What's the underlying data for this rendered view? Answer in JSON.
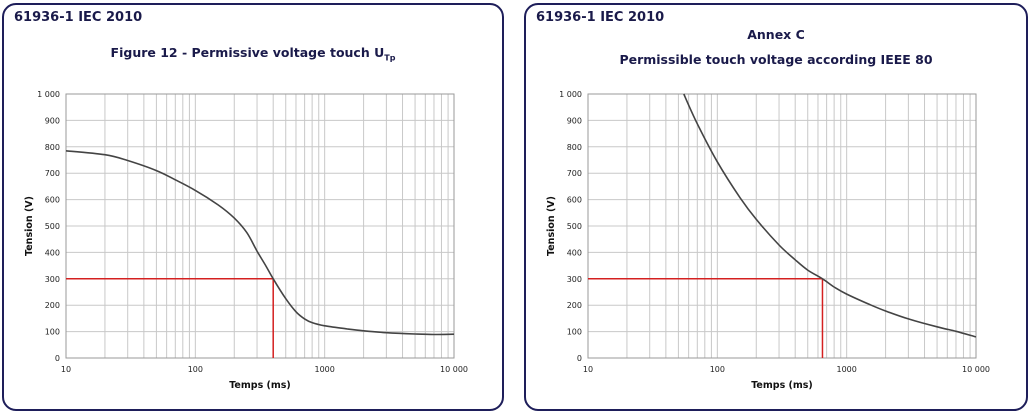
{
  "chart_data": [
    {
      "type": "line",
      "standard": "61936-1 IEC 2010",
      "annex": "",
      "title": "Figure 12 - Permissive voltage touch U",
      "title_subscript": "Tp",
      "xlabel": "Temps (ms)",
      "ylabel": "Tension (V)",
      "xscale": "log",
      "xlim": [
        10,
        10000
      ],
      "ylim": [
        0,
        1000
      ],
      "xticks": [
        {
          "value": 10,
          "label": "10"
        },
        {
          "value": 100,
          "label": "100"
        },
        {
          "value": 1000,
          "label": "1000"
        },
        {
          "value": 10000,
          "label": "10 000"
        }
      ],
      "yticks": [
        {
          "value": 0,
          "label": "0"
        },
        {
          "value": 100,
          "label": "100"
        },
        {
          "value": 200,
          "label": "200"
        },
        {
          "value": 300,
          "label": "300"
        },
        {
          "value": 400,
          "label": "400"
        },
        {
          "value": 500,
          "label": "500"
        },
        {
          "value": 600,
          "label": "600"
        },
        {
          "value": 700,
          "label": "700"
        },
        {
          "value": 800,
          "label": "800"
        },
        {
          "value": 900,
          "label": "900"
        },
        {
          "value": 1000,
          "label": "1 000"
        }
      ],
      "grid": true,
      "series": [
        {
          "color": "#444444",
          "x": [
            10,
            20,
            30,
            50,
            70,
            100,
            150,
            200,
            250,
            300,
            350,
            400,
            500,
            600,
            700,
            800,
            1000,
            1500,
            2000,
            3000,
            5000,
            7000,
            10000
          ],
          "y": [
            785,
            770,
            748,
            710,
            675,
            635,
            580,
            530,
            475,
            405,
            350,
            300,
            225,
            175,
            148,
            134,
            122,
            110,
            103,
            96,
            91,
            89,
            90
          ]
        }
      ],
      "marker": {
        "x": 400,
        "y": 300,
        "color": "#d42020"
      }
    },
    {
      "type": "line",
      "standard": "61936-1 IEC 2010",
      "annex": "Annex C",
      "title": "Permissible touch voltage according IEEE 80",
      "title_subscript": "",
      "xlabel": "Temps (ms)",
      "ylabel": "Tension (V)",
      "xscale": "log",
      "xlim": [
        10,
        10000
      ],
      "ylim": [
        0,
        1000
      ],
      "xticks": [
        {
          "value": 10,
          "label": "10"
        },
        {
          "value": 100,
          "label": "100"
        },
        {
          "value": 1000,
          "label": "1000"
        },
        {
          "value": 10000,
          "label": "10 000"
        }
      ],
      "yticks": [
        {
          "value": 0,
          "label": "0"
        },
        {
          "value": 100,
          "label": "100"
        },
        {
          "value": 200,
          "label": "200"
        },
        {
          "value": 300,
          "label": "300"
        },
        {
          "value": 400,
          "label": "400"
        },
        {
          "value": 500,
          "label": "500"
        },
        {
          "value": 600,
          "label": "600"
        },
        {
          "value": 700,
          "label": "700"
        },
        {
          "value": 800,
          "label": "800"
        },
        {
          "value": 900,
          "label": "900"
        },
        {
          "value": 1000,
          "label": "1 000"
        }
      ],
      "grid": true,
      "series": [
        {
          "color": "#444444",
          "x": [
            55,
            70,
            100,
            150,
            200,
            300,
            400,
            500,
            650,
            800,
            1000,
            1500,
            2000,
            3000,
            5000,
            7000,
            10000
          ],
          "y": [
            1000,
            887,
            743,
            607,
            525,
            428,
            372,
            333,
            300,
            269,
            242,
            203,
            178,
            148,
            118,
            101,
            80
          ]
        }
      ],
      "marker": {
        "x": 650,
        "y": 300,
        "color": "#d42020"
      }
    }
  ]
}
